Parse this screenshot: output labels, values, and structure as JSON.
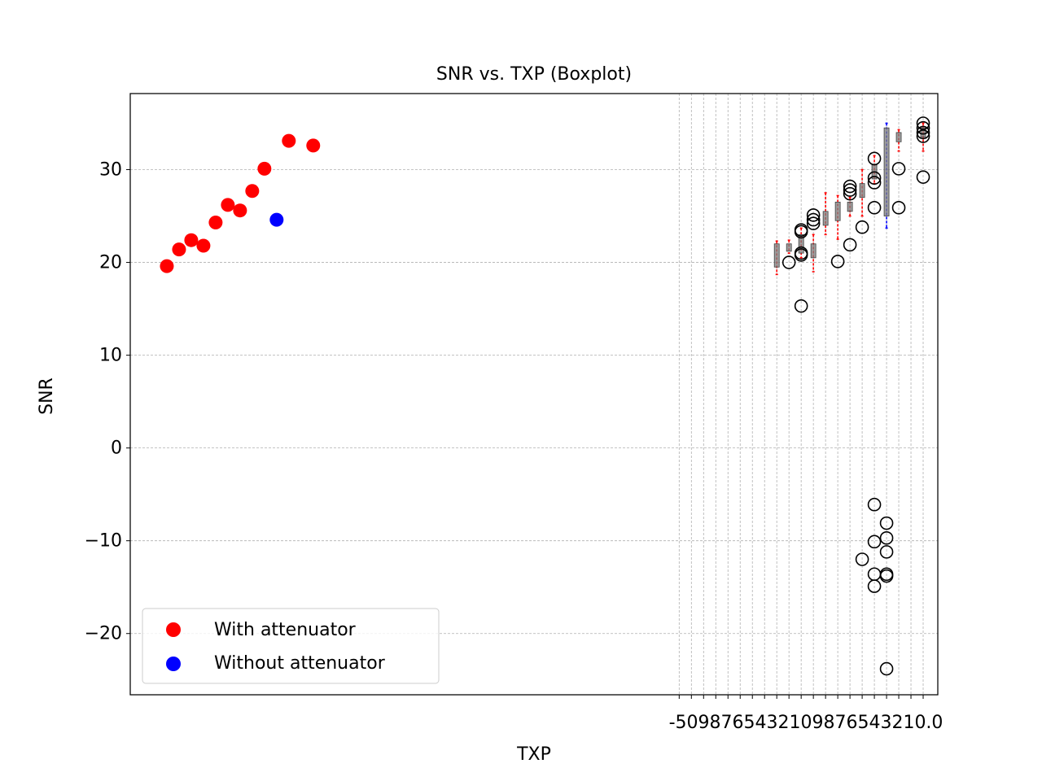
{
  "chart_data": {
    "type": "scatter",
    "title": "SNR vs. TXP (Boxplot)",
    "xlabel": "TXP",
    "ylabel": "SNR",
    "ylim": [
      -26.6,
      38.2
    ],
    "yticks": [
      -20,
      -10,
      0,
      10,
      20,
      30
    ],
    "ytick_labels": [
      "−20",
      "−10",
      "0",
      "10",
      "20",
      "30"
    ],
    "grid": true,
    "legend": {
      "placement": "lower-left",
      "entries": [
        {
          "label": "With attenuator",
          "color": "#ff0000"
        },
        {
          "label": "Without attenuator",
          "color": "#0000ff"
        }
      ]
    },
    "x_tick_labels_overlapping": "-5098765432109876543210.0",
    "series": [
      {
        "name": "With attenuator",
        "color": "#ff0000",
        "points": [
          {
            "x": 0,
            "y": 19.6
          },
          {
            "x": 1,
            "y": 21.4
          },
          {
            "x": 2,
            "y": 22.4
          },
          {
            "x": 3,
            "y": 21.8
          },
          {
            "x": 4,
            "y": 24.3
          },
          {
            "x": 5,
            "y": 26.2
          },
          {
            "x": 6,
            "y": 25.6
          },
          {
            "x": 7,
            "y": 27.7
          },
          {
            "x": 8,
            "y": 30.1
          },
          {
            "x": 10,
            "y": 33.1
          },
          {
            "x": 12,
            "y": 32.6
          }
        ]
      },
      {
        "name": "Without attenuator",
        "color": "#0000ff",
        "points": [
          {
            "x": 9,
            "y": 24.6
          }
        ]
      }
    ],
    "boxes": [
      {
        "x": 50,
        "q1": 19.5,
        "q3": 22.0,
        "whisker_low": 18.7,
        "whisker_high": 22.3,
        "color": "#ff0000"
      },
      {
        "x": 51,
        "q1": 21.2,
        "q3": 22.0,
        "whisker_low": 21.0,
        "whisker_high": 22.4,
        "color": "#ff0000"
      },
      {
        "x": 52,
        "q1": 21.0,
        "q3": 23.0,
        "whisker_low": 20.5,
        "whisker_high": 23.7,
        "color": "#ff0000"
      },
      {
        "x": 53,
        "q1": 20.5,
        "q3": 22.0,
        "whisker_low": 19.0,
        "whisker_high": 23.0,
        "color": "#ff0000"
      },
      {
        "x": 54,
        "q1": 24.0,
        "q3": 25.5,
        "whisker_low": 23.0,
        "whisker_high": 27.5,
        "color": "#ff0000"
      },
      {
        "x": 55,
        "q1": 24.5,
        "q3": 26.5,
        "whisker_low": 22.5,
        "whisker_high": 27.2,
        "color": "#ff0000"
      },
      {
        "x": 56,
        "q1": 25.5,
        "q3": 26.5,
        "whisker_low": 25.0,
        "whisker_high": 27.0,
        "color": "#ff0000"
      },
      {
        "x": 57,
        "q1": 27.0,
        "q3": 28.5,
        "whisker_low": 25.0,
        "whisker_high": 30.0,
        "color": "#ff0000"
      },
      {
        "x": 58,
        "q1": 29.0,
        "q3": 30.5,
        "whisker_low": 28.5,
        "whisker_high": 31.5,
        "color": "#ff0000"
      },
      {
        "x": 59,
        "q1": 25.0,
        "q3": 34.5,
        "whisker_low": 23.7,
        "whisker_high": 35.0,
        "color": "#0000ff"
      },
      {
        "x": 60,
        "q1": 33.0,
        "q3": 34.0,
        "whisker_low": 32.0,
        "whisker_high": 34.3,
        "color": "#ff0000"
      },
      {
        "x": 62,
        "q1": 33.5,
        "q3": 34.5,
        "whisker_low": 32.0,
        "whisker_high": 35.0,
        "color": "#ff0000"
      }
    ],
    "fliers": [
      {
        "x": 51,
        "y": 20.0
      },
      {
        "x": 52,
        "y": 23.3
      },
      {
        "x": 52,
        "y": 23.5
      },
      {
        "x": 52,
        "y": 21.0
      },
      {
        "x": 52,
        "y": 20.8
      },
      {
        "x": 52,
        "y": 15.3
      },
      {
        "x": 53,
        "y": 25.1
      },
      {
        "x": 53,
        "y": 24.6
      },
      {
        "x": 53,
        "y": 24.2
      },
      {
        "x": 55,
        "y": 20.1
      },
      {
        "x": 56,
        "y": 28.2
      },
      {
        "x": 56,
        "y": 27.8
      },
      {
        "x": 56,
        "y": 27.4
      },
      {
        "x": 56,
        "y": 21.9
      },
      {
        "x": 57,
        "y": 23.8
      },
      {
        "x": 57,
        "y": -12.0
      },
      {
        "x": 58,
        "y": 31.2
      },
      {
        "x": 58,
        "y": 29.1
      },
      {
        "x": 58,
        "y": 28.6
      },
      {
        "x": 58,
        "y": 25.9
      },
      {
        "x": 58,
        "y": -6.1
      },
      {
        "x": 58,
        "y": -10.1
      },
      {
        "x": 58,
        "y": -13.6
      },
      {
        "x": 58,
        "y": -14.9
      },
      {
        "x": 59,
        "y": -8.1
      },
      {
        "x": 59,
        "y": -9.7
      },
      {
        "x": 59,
        "y": -11.2
      },
      {
        "x": 59,
        "y": -13.6
      },
      {
        "x": 59,
        "y": -13.8
      },
      {
        "x": 59,
        "y": -23.8
      },
      {
        "x": 60,
        "y": 30.1
      },
      {
        "x": 60,
        "y": 25.9
      },
      {
        "x": 62,
        "y": 35.0
      },
      {
        "x": 62,
        "y": 34.5
      },
      {
        "x": 62,
        "y": 34.0
      },
      {
        "x": 62,
        "y": 33.6
      },
      {
        "x": 62,
        "y": 29.2
      }
    ]
  }
}
